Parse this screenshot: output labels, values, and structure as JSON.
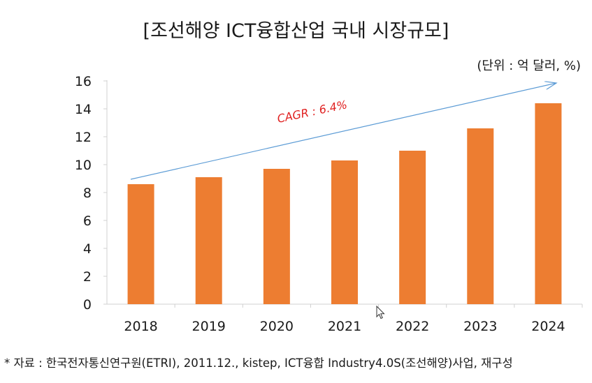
{
  "chart_data": {
    "type": "bar",
    "title": "[조선해양 ICT융합산업 국내 시장규모]",
    "unit_label": "(단위 : 억 달러, %)",
    "categories": [
      "2018",
      "2019",
      "2020",
      "2021",
      "2022",
      "2023",
      "2024"
    ],
    "values": [
      8.6,
      9.1,
      9.7,
      10.3,
      11.0,
      12.6,
      14.4
    ],
    "ylim": [
      0,
      16
    ],
    "yticks": [
      "0",
      "2",
      "4",
      "6",
      "8",
      "10",
      "12",
      "14",
      "16"
    ],
    "grid": false,
    "bar_color": "#ED7D31",
    "arrow_color": "#5B9BD5",
    "cagr_color": "#E02020",
    "annotation": "CAGR : 6.4%"
  },
  "source_note": "* 자료 : 한국전자통신연구원(ETRI), 2011.12., kistep, ICT융합 Industry4.0S(조선해양)사업, 재구성"
}
